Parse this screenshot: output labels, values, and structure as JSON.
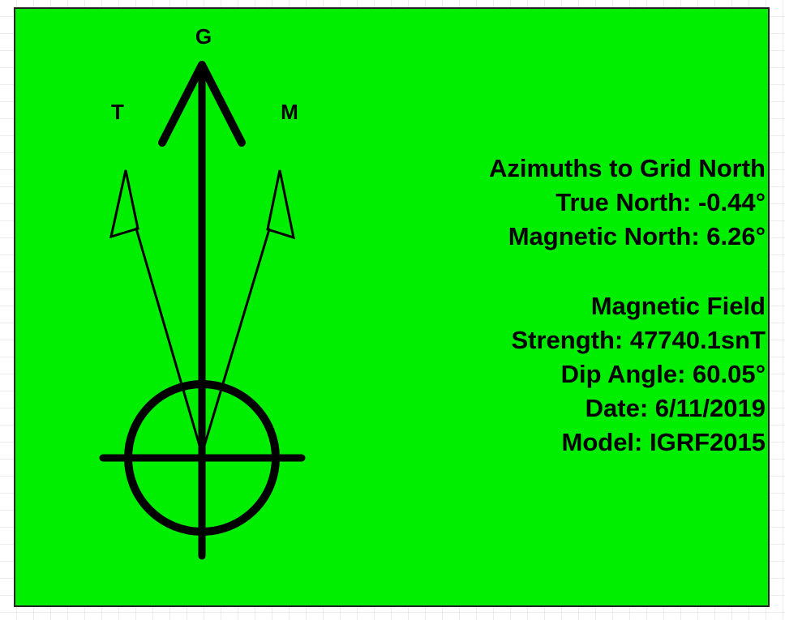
{
  "labels": {
    "grid": "G",
    "true": "T",
    "magnetic": "M"
  },
  "info": {
    "lines": [
      "Azimuths to Grid North",
      "True North: -0.44°",
      "Magnetic North: 6.26°",
      "Magnetic Field",
      "Strength: 47740.1snT",
      "Dip Angle: 60.05°",
      "Date: 6/11/2019",
      "Model: IGRF2015"
    ]
  }
}
